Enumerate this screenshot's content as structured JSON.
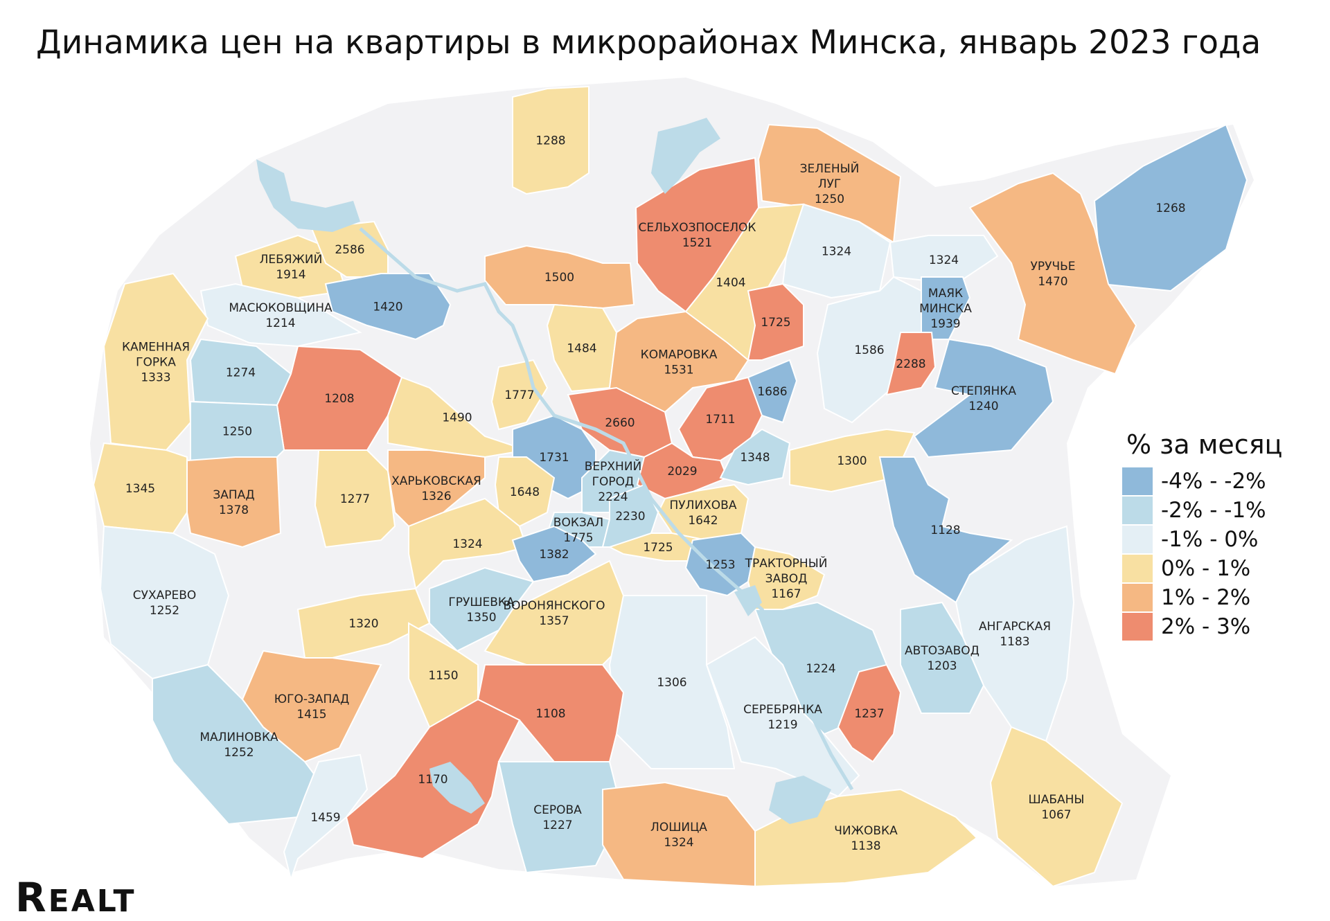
{
  "title": "Динамика цен на квартиры в микрорайонах Минска, январь 2023 года",
  "legend": {
    "title": "% за месяц",
    "items": [
      {
        "label": "-4% - -2%",
        "color": "#8fb9da"
      },
      {
        "label": "-2% - -1%",
        "color": "#bcdbe8"
      },
      {
        "label": "-1% - 0%",
        "color": "#e4eff5"
      },
      {
        "label": "0% - 1%",
        "color": "#f8e0a2"
      },
      {
        "label": "1% - 2%",
        "color": "#f5b883"
      },
      {
        "label": "2% - 3%",
        "color": "#ee8c6f"
      }
    ]
  },
  "districts": [
    {
      "id": "d01",
      "name": "",
      "value": "1288",
      "cls": 4
    },
    {
      "id": "d02",
      "name": "СЕЛЬХОЗПОСЕЛОК",
      "value": "1521",
      "cls": 6
    },
    {
      "id": "d03",
      "name": "ЗЕЛЕНЫЙ ЛУГ",
      "value": "1250",
      "cls": 5
    },
    {
      "id": "d04",
      "name": "",
      "value": "1268",
      "cls": 1
    },
    {
      "id": "d05",
      "name": "УРУЧЬЕ",
      "value": "1470",
      "cls": 5
    },
    {
      "id": "d06",
      "name": "ЛЕБЯЖИЙ",
      "value": "1914",
      "cls": 4
    },
    {
      "id": "d07",
      "name": "",
      "value": "2586",
      "cls": 4
    },
    {
      "id": "d08",
      "name": "",
      "value": "1500",
      "cls": 5
    },
    {
      "id": "d09",
      "name": "",
      "value": "1404",
      "cls": 4
    },
    {
      "id": "d10",
      "name": "",
      "value": "1324",
      "cls": 3
    },
    {
      "id": "d11",
      "name": "",
      "value": "1324",
      "cls": 3
    },
    {
      "id": "d12",
      "name": "МАЯК МИНСКА",
      "value": "1939",
      "cls": 1
    },
    {
      "id": "d13",
      "name": "МАСЮКОВЩИНА",
      "value": "1214",
      "cls": 3
    },
    {
      "id": "d14",
      "name": "",
      "value": "1420",
      "cls": 1
    },
    {
      "id": "d15",
      "name": "КАМЕННАЯ ГОРКА",
      "value": "1333",
      "cls": 4
    },
    {
      "id": "d16",
      "name": "",
      "value": "1484",
      "cls": 4
    },
    {
      "id": "d17",
      "name": "КОМАРОВКА",
      "value": "1531",
      "cls": 5
    },
    {
      "id": "d18",
      "name": "",
      "value": "1725",
      "cls": 6
    },
    {
      "id": "d19",
      "name": "",
      "value": "1586",
      "cls": 3
    },
    {
      "id": "d20",
      "name": "",
      "value": "2288",
      "cls": 6
    },
    {
      "id": "d21",
      "name": "СТЕПЯНКА",
      "value": "1240",
      "cls": 1
    },
    {
      "id": "d22",
      "name": "",
      "value": "1274",
      "cls": 2
    },
    {
      "id": "d23",
      "name": "",
      "value": "1208",
      "cls": 6
    },
    {
      "id": "d24",
      "name": "",
      "value": "1777",
      "cls": 4
    },
    {
      "id": "d25",
      "name": "",
      "value": "1686",
      "cls": 1
    },
    {
      "id": "d26",
      "name": "",
      "value": "1250",
      "cls": 2
    },
    {
      "id": "d27",
      "name": "",
      "value": "1490",
      "cls": 4
    },
    {
      "id": "d28",
      "name": "",
      "value": "2660",
      "cls": 6
    },
    {
      "id": "d29",
      "name": "",
      "value": "1711",
      "cls": 6
    },
    {
      "id": "d30",
      "name": "",
      "value": "1731",
      "cls": 1
    },
    {
      "id": "d31",
      "name": "ВЕРХНИЙ ГОРОД",
      "value": "2224",
      "cls": 2
    },
    {
      "id": "d32",
      "name": "",
      "value": "2029",
      "cls": 6
    },
    {
      "id": "d33",
      "name": "",
      "value": "1348",
      "cls": 2
    },
    {
      "id": "d34",
      "name": "",
      "value": "1300",
      "cls": 4
    },
    {
      "id": "d35",
      "name": "",
      "value": "1345",
      "cls": 4
    },
    {
      "id": "d36",
      "name": "ЗАПАД",
      "value": "1378",
      "cls": 5
    },
    {
      "id": "d37",
      "name": "",
      "value": "1277",
      "cls": 4
    },
    {
      "id": "d38",
      "name": "ХАРЬКОВСКАЯ",
      "value": "1326",
      "cls": 5
    },
    {
      "id": "d39",
      "name": "",
      "value": "1648",
      "cls": 4
    },
    {
      "id": "d40",
      "name": "ПУЛИХОВА",
      "value": "1642",
      "cls": 4
    },
    {
      "id": "d41",
      "name": "ВОКЗАЛ",
      "value": "1775",
      "cls": 2
    },
    {
      "id": "d42",
      "name": "",
      "value": "2230",
      "cls": 2
    },
    {
      "id": "d43",
      "name": "",
      "value": "1128",
      "cls": 1
    },
    {
      "id": "d44",
      "name": "",
      "value": "1324",
      "cls": 4
    },
    {
      "id": "d45",
      "name": "",
      "value": "1725",
      "cls": 4
    },
    {
      "id": "d46",
      "name": "",
      "value": "1382",
      "cls": 1
    },
    {
      "id": "d47",
      "name": "",
      "value": "1253",
      "cls": 1
    },
    {
      "id": "d48",
      "name": "ТРАКТОРНЫЙ ЗАВОД",
      "value": "1167",
      "cls": 4
    },
    {
      "id": "d49",
      "name": "СУХАРЕВО",
      "value": "1252",
      "cls": 3
    },
    {
      "id": "d50",
      "name": "ГРУШЕВКА",
      "value": "1350",
      "cls": 2
    },
    {
      "id": "d51",
      "name": "ВОРОНЯНСКОГО",
      "value": "1357",
      "cls": 4
    },
    {
      "id": "d52",
      "name": "",
      "value": "1320",
      "cls": 4
    },
    {
      "id": "d53",
      "name": "",
      "value": "1150",
      "cls": 4
    },
    {
      "id": "d54",
      "name": "АНГАРСКАЯ",
      "value": "1183",
      "cls": 3
    },
    {
      "id": "d55",
      "name": "ЮГО-ЗАПАД",
      "value": "1415",
      "cls": 5
    },
    {
      "id": "d56",
      "name": "",
      "value": "1306",
      "cls": 3
    },
    {
      "id": "d57",
      "name": "",
      "value": "1108",
      "cls": 6
    },
    {
      "id": "d58",
      "name": "",
      "value": "1224",
      "cls": 2
    },
    {
      "id": "d59",
      "name": "АВТОЗАВОД",
      "value": "1203",
      "cls": 2
    },
    {
      "id": "d60",
      "name": "СЕРЕБРЯНКА",
      "value": "1219",
      "cls": 3
    },
    {
      "id": "d61",
      "name": "",
      "value": "1237",
      "cls": 6
    },
    {
      "id": "d62",
      "name": "МАЛИНОВКА",
      "value": "1252",
      "cls": 2
    },
    {
      "id": "d63",
      "name": "",
      "value": "1170",
      "cls": 6
    },
    {
      "id": "d64",
      "name": "СЕРОВА",
      "value": "1227",
      "cls": 2
    },
    {
      "id": "d65",
      "name": "",
      "value": "1459",
      "cls": 3
    },
    {
      "id": "d66",
      "name": "ЛОШИЦА",
      "value": "1324",
      "cls": 5
    },
    {
      "id": "d67",
      "name": "ЧИЖОВКА",
      "value": "1138",
      "cls": 4
    },
    {
      "id": "d68",
      "name": "ШАБАНЫ",
      "value": "1067",
      "cls": 4
    }
  ],
  "logo": "REALT"
}
